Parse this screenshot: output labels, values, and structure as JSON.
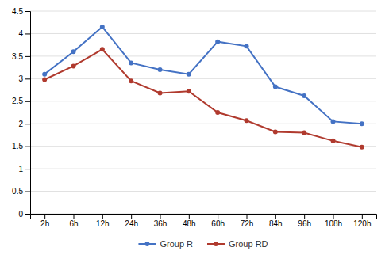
{
  "chart_data": {
    "type": "line",
    "categories": [
      "2h",
      "6h",
      "12h",
      "24h",
      "36h",
      "48h",
      "60h",
      "72h",
      "84h",
      "96h",
      "108h",
      "120h"
    ],
    "series": [
      {
        "name": "Group R",
        "color": "#4472C4",
        "values": [
          3.1,
          3.6,
          4.15,
          3.35,
          3.2,
          3.1,
          3.82,
          3.72,
          2.82,
          2.62,
          2.05,
          2.0
        ]
      },
      {
        "name": "Group RD",
        "color": "#B03A2E",
        "values": [
          2.98,
          3.28,
          3.65,
          2.95,
          2.68,
          2.72,
          2.25,
          2.07,
          1.82,
          1.8,
          1.62,
          1.48
        ]
      }
    ],
    "ylim": [
      0,
      4.5
    ],
    "yticks": [
      0,
      0.5,
      1,
      1.5,
      2,
      2.5,
      3,
      3.5,
      4,
      4.5
    ],
    "grid": true,
    "legend": "bottom",
    "marker": "circle"
  }
}
